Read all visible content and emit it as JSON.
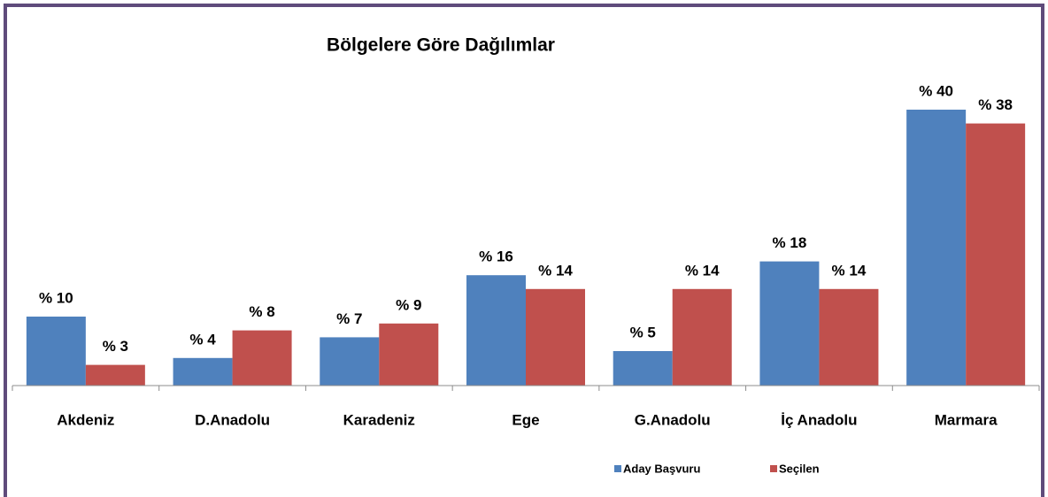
{
  "chart_data": {
    "type": "bar",
    "title": "Bölgelere Göre Dağılımlar",
    "categories": [
      "Akdeniz",
      "D.Anadolu",
      "Karadeniz",
      "Ege",
      "G.Anadolu",
      "İç Anadolu",
      "Marmara"
    ],
    "series": [
      {
        "name": "Aday Başvuru",
        "color": "#4f81bd",
        "values": [
          10,
          4,
          7,
          16,
          5,
          18,
          40
        ],
        "value_labels": [
          "% 10",
          "% 4",
          "% 7",
          "% 16",
          "% 5",
          "% 18",
          "% 40"
        ]
      },
      {
        "name": "Seçilen",
        "color": "#c0504d",
        "values": [
          3,
          8,
          9,
          14,
          14,
          14,
          38
        ],
        "value_labels": [
          "% 3",
          "% 8",
          "% 9",
          "% 14",
          "% 14",
          "% 14",
          "% 38"
        ]
      }
    ],
    "ylim": [
      0,
      45
    ],
    "legend": "bottom"
  }
}
